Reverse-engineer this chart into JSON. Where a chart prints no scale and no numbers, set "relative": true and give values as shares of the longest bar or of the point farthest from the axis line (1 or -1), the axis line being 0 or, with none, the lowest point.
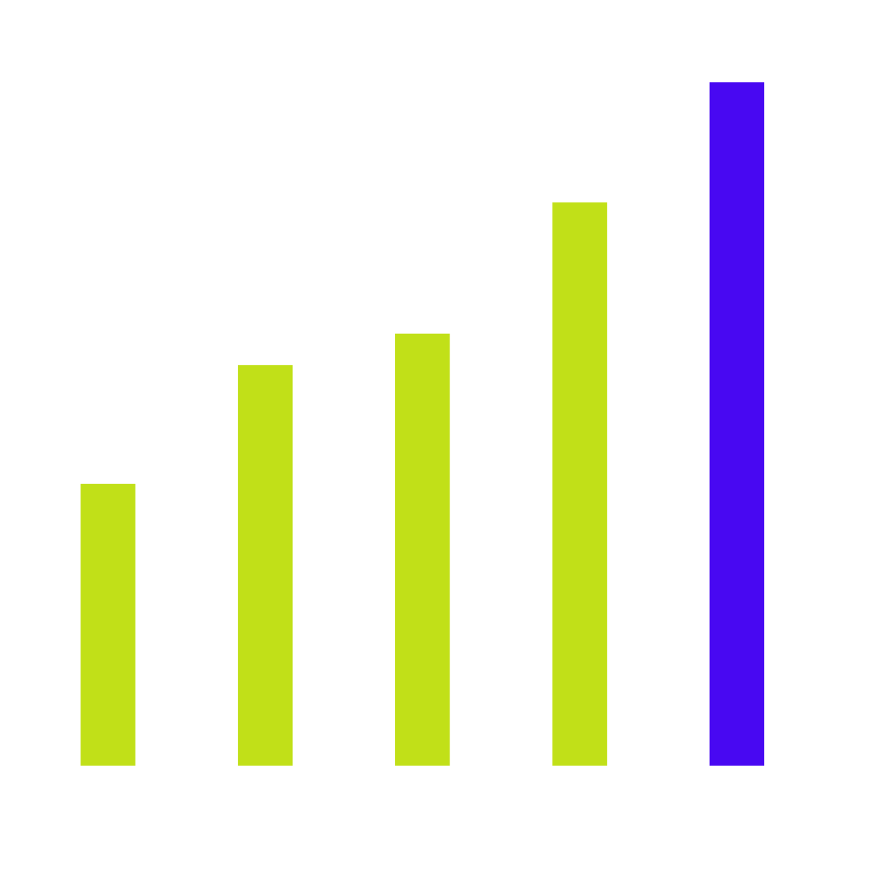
{
  "chart_data": {
    "type": "bar",
    "relative": true,
    "categories": [
      null,
      null,
      null,
      null,
      null
    ],
    "values": [
      0.412,
      0.586,
      0.632,
      0.824,
      1.0
    ],
    "colors": [
      "#c1e018",
      "#c1e018",
      "#c1e018",
      "#c1e018",
      "#4808f2"
    ]
  }
}
